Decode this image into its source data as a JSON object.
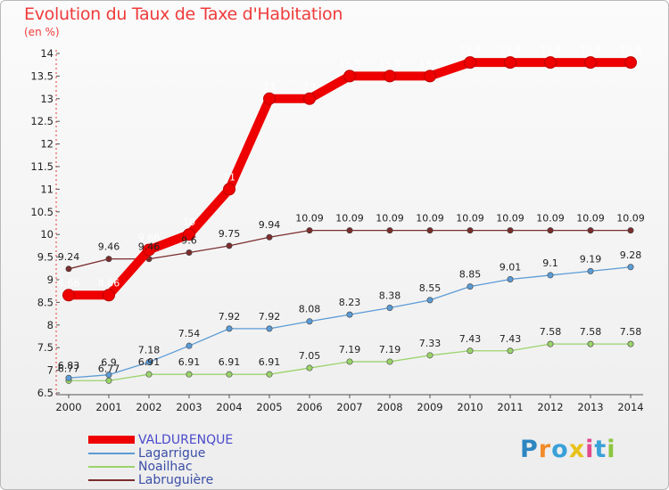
{
  "title": "Evolution du Taux de Taxe d'Habitation",
  "subtitle": "(en %)",
  "logo": {
    "text": "Proxiti",
    "letters": [
      {
        "ch": "P",
        "color": "#2e86c1"
      },
      {
        "ch": "r",
        "color": "#f28c28"
      },
      {
        "ch": "o",
        "color": "#3aa0d8"
      },
      {
        "ch": "x",
        "color": "#e8c21c"
      },
      {
        "ch": "i",
        "color": "#e24a8f"
      },
      {
        "ch": "t",
        "color": "#3aa0d8"
      },
      {
        "ch": "i",
        "color": "#8cc63f"
      }
    ]
  },
  "chart_data": {
    "type": "line",
    "title": "Evolution du Taux de Taxe d'Habitation",
    "ylabel": "(en %)",
    "xlabel": "",
    "ylim": [
      6.5,
      14
    ],
    "yticks": [
      "6.5",
      "7",
      "7.5",
      "8",
      "8.5",
      "9",
      "9.5",
      "10",
      "10.5",
      "11",
      "11.5",
      "12",
      "12.5",
      "13",
      "13.5",
      "14"
    ],
    "categories": [
      "2000",
      "2001",
      "2002",
      "2003",
      "2004",
      "2005",
      "2006",
      "2007",
      "2008",
      "2009",
      "2010",
      "2011",
      "2012",
      "2013",
      "2014"
    ],
    "grid": false,
    "legend_position": "bottom-left",
    "series": [
      {
        "name": "VALDURENQUE",
        "color": "#ee0000",
        "values": [
          8.66,
          8.66,
          9.66,
          10,
          11,
          13,
          13,
          13.5,
          13.5,
          13.5,
          13.8,
          13.8,
          13.8,
          13.8,
          13.8
        ],
        "labels": [
          "8.66",
          "8.66",
          "9.66",
          "10",
          "11",
          "13",
          "13",
          "13.5",
          "13.5",
          "13.5",
          "13.8",
          "13.8",
          "13.8",
          "13.8",
          "13.8"
        ]
      },
      {
        "name": "Lagarrigue",
        "color": "#5b9bd5",
        "values": [
          6.83,
          6.9,
          7.18,
          7.54,
          7.92,
          7.92,
          8.08,
          8.23,
          8.38,
          8.55,
          8.85,
          9.01,
          9.1,
          9.19,
          9.28
        ],
        "labels": [
          "6.83",
          "6.9",
          "7.18",
          "7.54",
          "7.92",
          "7.92",
          "8.08",
          "8.23",
          "8.38",
          "8.55",
          "8.85",
          "9.01",
          "9.1",
          "9.19",
          "9.28"
        ]
      },
      {
        "name": "Noailhac",
        "color": "#9bd36b",
        "values": [
          6.77,
          6.77,
          6.91,
          6.91,
          6.91,
          6.91,
          7.05,
          7.19,
          7.19,
          7.33,
          7.43,
          7.43,
          7.58,
          7.58,
          7.58
        ],
        "labels": [
          "6.77",
          "6.77",
          "6.91",
          "6.91",
          "6.91",
          "6.91",
          "7.05",
          "7.19",
          "7.19",
          "7.33",
          "7.43",
          "7.43",
          "7.58",
          "7.58",
          "7.58"
        ]
      },
      {
        "name": "Labruguière",
        "color": "#7b2d2d",
        "values": [
          9.24,
          9.46,
          9.46,
          9.6,
          9.75,
          9.94,
          10.09,
          10.09,
          10.09,
          10.09,
          10.09,
          10.09,
          10.09,
          10.09,
          10.09
        ],
        "labels": [
          "9.24",
          "9.46",
          "9.46",
          "9.6",
          "9.75",
          "9.94",
          "10.09",
          "10.09",
          "10.09",
          "10.09",
          "10.09",
          "10.09",
          "10.09",
          "10.09",
          "10.09"
        ]
      }
    ]
  }
}
